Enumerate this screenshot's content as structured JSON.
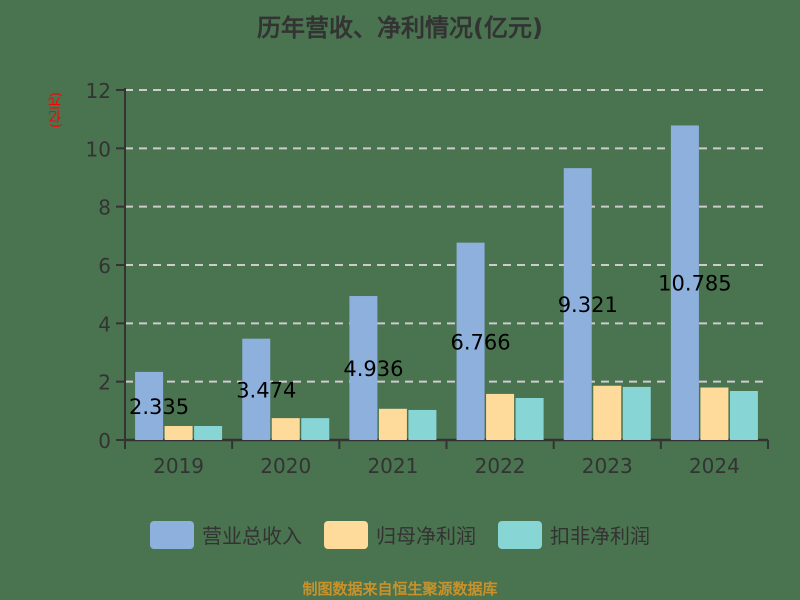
{
  "title": "历年营收、净利情况(亿元)",
  "y_unit_label": "(亿元)",
  "footer": "制图数据来自恒生聚源数据库",
  "legend": [
    {
      "label": "营业总收入",
      "color": "#8eb0dc"
    },
    {
      "label": "归母净利润",
      "color": "#fedb9a"
    },
    {
      "label": "扣非净利润",
      "color": "#88d5d6"
    }
  ],
  "chart_data": {
    "type": "bar",
    "title": "历年营收、净利情况(亿元)",
    "xlabel": "",
    "ylabel": "(亿元)",
    "ylim": [
      0,
      12
    ],
    "yticks": [
      0,
      2,
      4,
      6,
      8,
      10,
      12
    ],
    "grid": true,
    "legend_position": "bottom",
    "categories": [
      "2019",
      "2020",
      "2021",
      "2022",
      "2023",
      "2024"
    ],
    "series": [
      {
        "name": "营业总收入",
        "color": "#8eb0dc",
        "values": [
          2.335,
          3.474,
          4.936,
          6.766,
          9.321,
          10.785
        ],
        "labels": [
          "2.335",
          "3.474",
          "4.936",
          "6.766",
          "9.321",
          "10.785"
        ]
      },
      {
        "name": "归母净利润",
        "color": "#fedb9a",
        "values": [
          0.48,
          0.75,
          1.07,
          1.58,
          1.86,
          1.8
        ]
      },
      {
        "name": "扣非净利润",
        "color": "#88d5d6",
        "values": [
          0.48,
          0.75,
          1.03,
          1.44,
          1.82,
          1.68
        ]
      }
    ]
  }
}
